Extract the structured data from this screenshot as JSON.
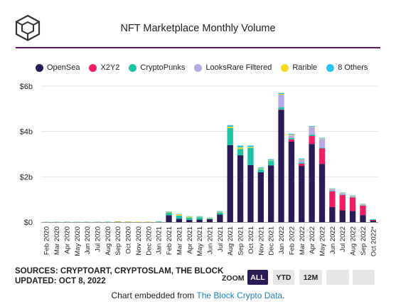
{
  "header": {
    "title": "NFT Marketplace Monthly Volume"
  },
  "colors": {
    "OpenSea": "#2a1a55",
    "X2Y2": "#f21d64",
    "CryptoPunks": "#1ec3a6",
    "LooksRare Filtered": "#b7a9e6",
    "Rarible": "#f7d81b",
    "8 Others": "#27c4f0",
    "rule": "#5b1d5e"
  },
  "footer": {
    "sources": "SOURCES: CRYPTOART, CRYPTOSLAM, THE BLOCK",
    "updated": "UPDATED: OCT 8, 2022",
    "zoom_label": "ZOOM",
    "zoom_buttons": [
      "ALL",
      "YTD",
      "12M",
      "",
      ""
    ],
    "embed_prefix": "Chart embedded from",
    "embed_link": "The Block Crypto Data",
    "embed_suffix": "."
  },
  "chart_data": {
    "type": "bar",
    "stacked": true,
    "title": "NFT Marketplace Monthly Volume",
    "ylim": [
      0,
      6
    ],
    "yticks": [
      0,
      2,
      4,
      6
    ],
    "ytick_labels": [
      "$0",
      "$2b",
      "$4b",
      "$6b"
    ],
    "grid": true,
    "legend_position": "top",
    "categories": [
      "Feb 2020",
      "Mar 2020",
      "Apr 2020",
      "May 2020",
      "Jun 2020",
      "Jul 2020",
      "Aug 2020",
      "Sep 2020",
      "Oct 2020",
      "Nov 2020",
      "Dec 2020",
      "Jan 2021",
      "Feb 2021",
      "Mar 2021",
      "Apr 2021",
      "May 2021",
      "Jun 2021",
      "Jul 2021",
      "Aug 2021",
      "Sep 2021",
      "Oct 2021",
      "Nov 2021",
      "Dec 2021",
      "Jan 2022",
      "Feb 2022",
      "Mar 2022",
      "Apr 2022",
      "May 2022",
      "Jun 2022",
      "Jul 2022",
      "Aug 2022",
      "Sep 2022",
      "Oct 2022"
    ],
    "xtick_labels": [
      "Feb 2020",
      "Mar 2020",
      "Apr 2020",
      "May 2020",
      "Jun 2020",
      "Jul 2020",
      "Aug 2020",
      "Sep 2020",
      "Oct 2020",
      "Nov 2020",
      "Dec 2020",
      "Jan 2021",
      "Feb 2021",
      "Mar 2021",
      "Apr 2021",
      "May 2021",
      "Jun 2021",
      "Jul 2021",
      "Aug 2021",
      "Sep 2021",
      "Oct 2021",
      "Nov 2021",
      "Dec 2021",
      "Jan 2022",
      "Feb 2022",
      "Mar 2022",
      "Apr 2022",
      "May 2022",
      "Jun 2022",
      "Jul 2022",
      "Aug 2022",
      "Sep 2022",
      "Oct 2022*"
    ],
    "series": [
      {
        "name": "OpenSea",
        "values": [
          0.003,
          0.004,
          0.005,
          0.003,
          0.004,
          0.005,
          0.01,
          0.02,
          0.015,
          0.01,
          0.012,
          0.01,
          0.3,
          0.15,
          0.1,
          0.11,
          0.13,
          0.33,
          3.4,
          2.95,
          2.52,
          2.2,
          2.5,
          4.95,
          3.55,
          2.48,
          3.45,
          2.57,
          0.66,
          0.52,
          0.49,
          0.31,
          0.06
        ]
      },
      {
        "name": "X2Y2",
        "values": [
          0,
          0,
          0,
          0,
          0,
          0,
          0,
          0,
          0,
          0,
          0,
          0,
          0,
          0,
          0,
          0,
          0,
          0,
          0,
          0,
          0,
          0,
          0,
          0.02,
          0.1,
          0.1,
          0.35,
          0.68,
          0.7,
          0.68,
          0.6,
          0.42,
          0.05
        ]
      },
      {
        "name": "CryptoPunks",
        "values": [
          0.003,
          0.004,
          0.003,
          0.004,
          0.004,
          0.003,
          0.005,
          0.006,
          0.005,
          0.004,
          0.006,
          0.008,
          0.12,
          0.14,
          0.1,
          0.1,
          0.03,
          0.1,
          0.75,
          0.28,
          0.75,
          0.13,
          0.2,
          0.1,
          0.06,
          0.05,
          0.06,
          0.04,
          0.02,
          0.02,
          0.02,
          0.02,
          0.005
        ]
      },
      {
        "name": "LooksRare Filtered",
        "values": [
          0,
          0,
          0,
          0,
          0,
          0,
          0,
          0,
          0,
          0,
          0,
          0,
          0,
          0,
          0,
          0,
          0,
          0,
          0,
          0,
          0,
          0,
          0,
          0.55,
          0.12,
          0.12,
          0.32,
          0.38,
          0.08,
          0.06,
          0.04,
          0.03,
          0.01
        ]
      },
      {
        "name": "Rarible",
        "values": [
          0,
          0,
          0,
          0,
          0,
          0,
          0,
          0.005,
          0.005,
          0.004,
          0.004,
          0.01,
          0.03,
          0.05,
          0.04,
          0.02,
          0.02,
          0.03,
          0.06,
          0.07,
          0.04,
          0.03,
          0.03,
          0.03,
          0.03,
          0.02,
          0.02,
          0.02,
          0.01,
          0.01,
          0.01,
          0.01,
          0.002
        ]
      },
      {
        "name": "8 Others",
        "values": [
          0,
          0,
          0,
          0,
          0,
          0,
          0,
          0,
          0,
          0,
          0,
          0.01,
          0.02,
          0.02,
          0.02,
          0.03,
          0.02,
          0.03,
          0.07,
          0.08,
          0.07,
          0.05,
          0.05,
          0.05,
          0.04,
          0.04,
          0.04,
          0.03,
          0.02,
          0.02,
          0.02,
          0.02,
          0.005
        ]
      }
    ]
  }
}
